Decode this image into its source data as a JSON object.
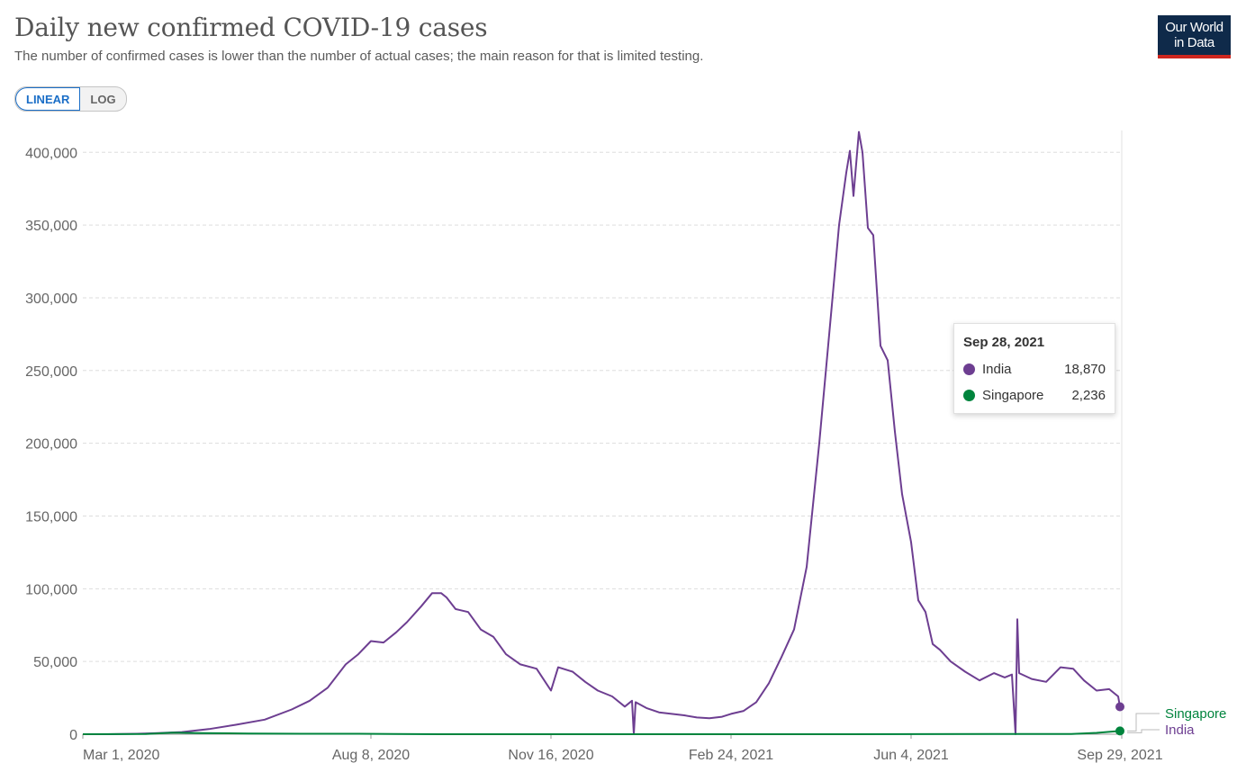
{
  "header": {
    "title": "Daily new confirmed COVID-19 cases",
    "subtitle": "The number of confirmed cases is lower than the number of actual cases; the main reason for that is limited testing."
  },
  "logo": {
    "line1": "Our World",
    "line2": "in Data"
  },
  "scale_toggle": {
    "linear_label": "LINEAR",
    "log_label": "LOG",
    "selected": "LINEAR"
  },
  "colors": {
    "india": "#6d3e91",
    "singapore": "#00843d",
    "grid": "#dddddd"
  },
  "tooltip": {
    "date": "Sep 28, 2021",
    "rows": [
      {
        "name": "India",
        "value": "18,870"
      },
      {
        "name": "Singapore",
        "value": "2,236"
      }
    ]
  },
  "chart_data": {
    "type": "line",
    "title": "Daily new confirmed COVID-19 cases",
    "subtitle": "The number of confirmed cases is lower than the number of actual cases; the main reason for that is limited testing.",
    "x_start": "2020-03-01",
    "x_end": "2021-09-29",
    "ylim": [
      0,
      415000
    ],
    "y_ticks": [
      0,
      50000,
      100000,
      150000,
      200000,
      250000,
      300000,
      350000,
      400000
    ],
    "y_tick_labels": [
      "0",
      "50,000",
      "100,000",
      "150,000",
      "200,000",
      "250,000",
      "300,000",
      "350,000",
      "400,000"
    ],
    "x_ticks": [
      "2020-03-01",
      "2020-08-08",
      "2020-11-16",
      "2021-02-24",
      "2021-06-04",
      "2021-09-29"
    ],
    "x_tick_labels": [
      "Mar 1, 2020",
      "Aug 8, 2020",
      "Nov 16, 2020",
      "Feb 24, 2021",
      "Jun 4, 2021",
      "Sep 29, 2021"
    ],
    "grid": "horizontal dashed",
    "legend": "line-end labels",
    "series": [
      {
        "name": "India",
        "points": [
          [
            "2020-03-01",
            0
          ],
          [
            "2020-03-15",
            30
          ],
          [
            "2020-03-31",
            300
          ],
          [
            "2020-04-10",
            700
          ],
          [
            "2020-04-25",
            1500
          ],
          [
            "2020-05-10",
            3500
          ],
          [
            "2020-05-25",
            6500
          ],
          [
            "2020-06-10",
            10000
          ],
          [
            "2020-06-25",
            17000
          ],
          [
            "2020-07-05",
            23000
          ],
          [
            "2020-07-15",
            32000
          ],
          [
            "2020-07-25",
            48000
          ],
          [
            "2020-08-01",
            55000
          ],
          [
            "2020-08-08",
            64000
          ],
          [
            "2020-08-15",
            63000
          ],
          [
            "2020-08-22",
            70000
          ],
          [
            "2020-08-28",
            77000
          ],
          [
            "2020-09-05",
            88000
          ],
          [
            "2020-09-11",
            97000
          ],
          [
            "2020-09-16",
            97000
          ],
          [
            "2020-09-19",
            94000
          ],
          [
            "2020-09-24",
            86000
          ],
          [
            "2020-10-01",
            84000
          ],
          [
            "2020-10-08",
            72000
          ],
          [
            "2020-10-15",
            67000
          ],
          [
            "2020-10-22",
            55000
          ],
          [
            "2020-10-30",
            48000
          ],
          [
            "2020-11-08",
            45000
          ],
          [
            "2020-11-16",
            30000
          ],
          [
            "2020-11-20",
            46000
          ],
          [
            "2020-11-28",
            43000
          ],
          [
            "2020-12-05",
            36000
          ],
          [
            "2020-12-12",
            30000
          ],
          [
            "2020-12-20",
            26000
          ],
          [
            "2020-12-27",
            19000
          ],
          [
            "2020-12-31",
            23000
          ],
          [
            "2021-01-01",
            0
          ],
          [
            "2021-01-02",
            22000
          ],
          [
            "2021-01-08",
            18000
          ],
          [
            "2021-01-15",
            15000
          ],
          [
            "2021-01-22",
            14000
          ],
          [
            "2021-01-29",
            13000
          ],
          [
            "2021-02-05",
            11500
          ],
          [
            "2021-02-12",
            11000
          ],
          [
            "2021-02-19",
            12000
          ],
          [
            "2021-02-24",
            14000
          ],
          [
            "2021-03-03",
            16000
          ],
          [
            "2021-03-10",
            22000
          ],
          [
            "2021-03-17",
            35000
          ],
          [
            "2021-03-24",
            53000
          ],
          [
            "2021-03-31",
            72000
          ],
          [
            "2021-04-07",
            115000
          ],
          [
            "2021-04-14",
            200000
          ],
          [
            "2021-04-21",
            295000
          ],
          [
            "2021-04-25",
            350000
          ],
          [
            "2021-04-29",
            386000
          ],
          [
            "2021-05-01",
            401000
          ],
          [
            "2021-05-03",
            370000
          ],
          [
            "2021-05-06",
            414000
          ],
          [
            "2021-05-08",
            400000
          ],
          [
            "2021-05-11",
            348000
          ],
          [
            "2021-05-14",
            343000
          ],
          [
            "2021-05-18",
            267000
          ],
          [
            "2021-05-22",
            257000
          ],
          [
            "2021-05-26",
            208000
          ],
          [
            "2021-05-30",
            165000
          ],
          [
            "2021-06-04",
            132000
          ],
          [
            "2021-06-08",
            92000
          ],
          [
            "2021-06-12",
            84000
          ],
          [
            "2021-06-16",
            62000
          ],
          [
            "2021-06-20",
            58000
          ],
          [
            "2021-06-26",
            50000
          ],
          [
            "2021-07-04",
            43000
          ],
          [
            "2021-07-12",
            37000
          ],
          [
            "2021-07-20",
            42000
          ],
          [
            "2021-07-26",
            39000
          ],
          [
            "2021-07-30",
            41000
          ],
          [
            "2021-08-01",
            0
          ],
          [
            "2021-08-02",
            79000
          ],
          [
            "2021-08-03",
            42000
          ],
          [
            "2021-08-10",
            38000
          ],
          [
            "2021-08-18",
            36000
          ],
          [
            "2021-08-26",
            46000
          ],
          [
            "2021-09-02",
            45000
          ],
          [
            "2021-09-08",
            37000
          ],
          [
            "2021-09-15",
            30000
          ],
          [
            "2021-09-22",
            31000
          ],
          [
            "2021-09-27",
            26000
          ],
          [
            "2021-09-28",
            18870
          ]
        ]
      },
      {
        "name": "Singapore",
        "points": [
          [
            "2020-03-01",
            0
          ],
          [
            "2020-04-05",
            100
          ],
          [
            "2020-04-20",
            1100
          ],
          [
            "2020-05-05",
            800
          ],
          [
            "2020-06-01",
            500
          ],
          [
            "2020-07-01",
            300
          ],
          [
            "2020-08-01",
            300
          ],
          [
            "2020-08-20",
            100
          ],
          [
            "2020-09-15",
            20
          ],
          [
            "2021-01-01",
            20
          ],
          [
            "2021-05-01",
            30
          ],
          [
            "2021-07-20",
            150
          ],
          [
            "2021-08-20",
            100
          ],
          [
            "2021-09-01",
            200
          ],
          [
            "2021-09-15",
            900
          ],
          [
            "2021-09-28",
            2236
          ]
        ]
      }
    ]
  }
}
